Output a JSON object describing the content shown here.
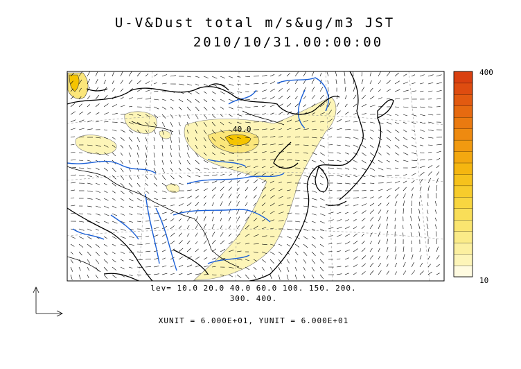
{
  "title": {
    "line1": "U-V&Dust total m/s&ug/m3 JST",
    "line2": "2010/10/31.00:00:00"
  },
  "legend": {
    "levels_line1": "lev= 10.0 20.0 40.0 60.0 100. 150. 200.",
    "levels_line2": "300. 400.",
    "units": "XUNIT = 6.000E+01, YUNIT = 6.000E+01",
    "colorbar_max": "400",
    "colorbar_min": "10",
    "contour_label": "40.0"
  },
  "colors": {
    "coast": "#000000",
    "rivers": "#1a5fd6",
    "dust_low": "#fdf5b8",
    "dust_mid": "#fbe67a",
    "dust_high": "#f5c400"
  }
}
